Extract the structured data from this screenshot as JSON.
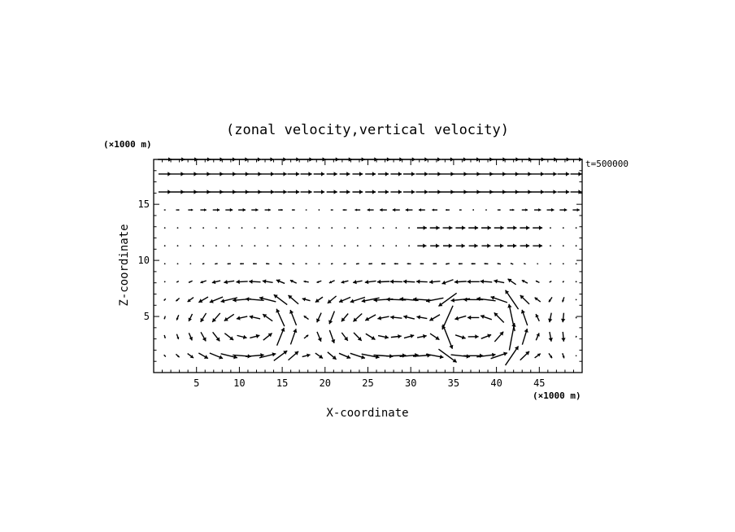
{
  "chart_data": {
    "type": "vector",
    "title": "(zonal velocity,vertical velocity)",
    "xlabel": "X-coordinate",
    "ylabel": "Z-coordinate",
    "x_unit": "(×1000 m)",
    "y_unit": "(×1000 m)",
    "annotation": "t=500000",
    "xlim": [
      0,
      50
    ],
    "ylim": [
      0,
      19
    ],
    "x_ticks": [
      5,
      10,
      15,
      20,
      25,
      30,
      35,
      40,
      45
    ],
    "y_ticks": [
      5,
      10,
      15
    ],
    "grid": false,
    "x_spacing": 1.5,
    "z_levels": [
      1.5,
      3.2,
      4.9,
      6.5,
      8.1,
      9.7,
      11.3,
      12.9,
      14.5,
      16.1,
      17.7,
      19.0
    ],
    "field_description": "circulation cells: cell centers near (x,z) of (11,4), (27,4), (38,4); strong updraft at x~42, strong downdrafts at x~34 and x~47"
  }
}
